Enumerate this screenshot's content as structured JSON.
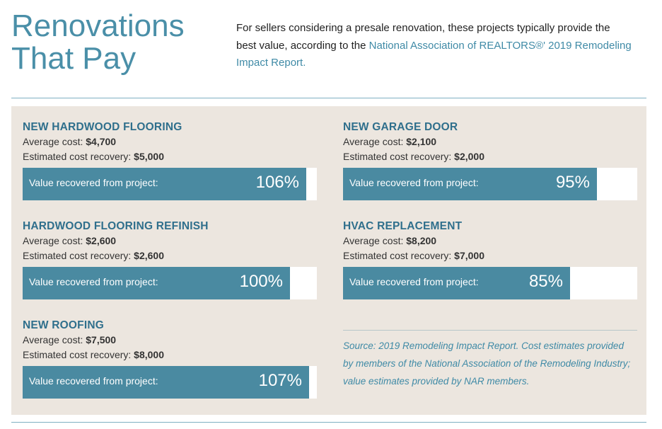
{
  "header": {
    "title_line1": "Renovations",
    "title_line2": "That Pay",
    "intro_text": "For sellers considering a presale renovation, these projects typically provide the best value, according to the ",
    "intro_link": "National Association of REALTORS®' 2019 Remodeling Impact Report."
  },
  "labels": {
    "average_cost": "Average cost: ",
    "estimated_recovery": "Estimated cost recovery: ",
    "value_recovered": "Value recovered from project:"
  },
  "source_note": "Source: 2019 Remodeling Impact Report. Cost estimates provided by members of the National Association of the Remodeling Industry; value estimates provided by NAR members.",
  "colors": {
    "accent": "#4a8fa8",
    "bar": "#4a8aa1",
    "panel": "#ece6df",
    "heading": "#2f6f8c"
  },
  "chart_data": {
    "type": "bar",
    "categories": [
      "NEW HARDWOOD FLOORING",
      "HARDWOOD FLOORING REFINISH",
      "NEW ROOFING",
      "NEW GARAGE DOOR",
      "HVAC REPLACEMENT"
    ],
    "series": [
      {
        "name": "Average cost",
        "values": [
          "$4,700",
          "$2,600",
          "$7,500",
          "$2,100",
          "$8,200"
        ]
      },
      {
        "name": "Estimated cost recovery",
        "values": [
          "$5,000",
          "$2,600",
          "$8,000",
          "$2,000",
          "$7,000"
        ]
      },
      {
        "name": "Value recovered from project",
        "values": [
          106,
          100,
          107,
          95,
          85
        ],
        "display": [
          "106%",
          "100%",
          "107%",
          "95%",
          "85%"
        ]
      }
    ],
    "title": "Renovations That Pay",
    "xlabel": "",
    "ylabel": "",
    "value_unit": "%",
    "grid": false,
    "legend": "none"
  }
}
